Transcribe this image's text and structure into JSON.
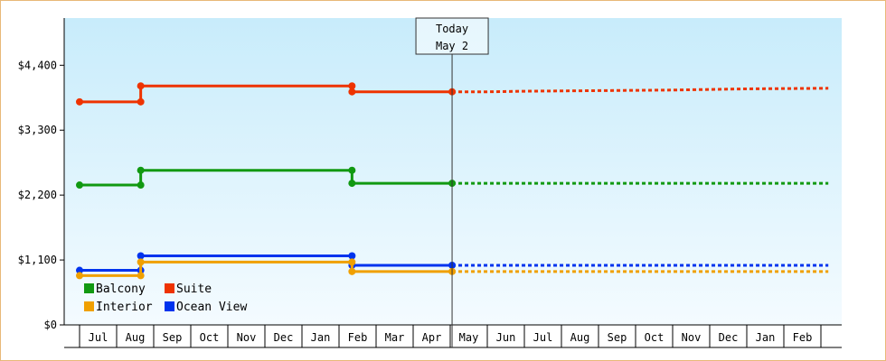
{
  "chart_data": {
    "type": "line",
    "title": "",
    "xlabel": "",
    "ylabel": "",
    "ylim": [
      0,
      5200
    ],
    "y_ticks": [
      {
        "value": 0,
        "label": "$0"
      },
      {
        "value": 1100,
        "label": "$1,100"
      },
      {
        "value": 2200,
        "label": "$2,200"
      },
      {
        "value": 3300,
        "label": "$3,300"
      },
      {
        "value": 4400,
        "label": "$4,400"
      }
    ],
    "months": [
      "Jul",
      "Aug",
      "Sep",
      "Oct",
      "Nov",
      "Dec",
      "Jan",
      "Feb",
      "Mar",
      "Apr",
      "May",
      "Jun",
      "Jul",
      "Aug",
      "Sep",
      "Oct",
      "Nov",
      "Dec",
      "Jan",
      "Feb"
    ],
    "today": {
      "line1": "Today",
      "line2": "May 2",
      "month_index": 10.05
    },
    "grid": false,
    "legend_position": "bottom-left",
    "series": [
      {
        "name": "Suite",
        "color": "#ee3300",
        "points": [
          [
            0.0,
            3780
          ],
          [
            1.65,
            3780
          ],
          [
            1.65,
            4050
          ],
          [
            7.35,
            4050
          ],
          [
            7.35,
            3950
          ],
          [
            10.05,
            3950
          ]
        ],
        "forecast": [
          [
            10.05,
            3950
          ],
          [
            11.0,
            3950
          ],
          [
            12.0,
            3960
          ],
          [
            14.0,
            3970
          ],
          [
            16.0,
            3980
          ],
          [
            18.0,
            4000
          ],
          [
            20.2,
            4010
          ]
        ]
      },
      {
        "name": "Balcony",
        "color": "#119911",
        "points": [
          [
            0.0,
            2370
          ],
          [
            1.65,
            2370
          ],
          [
            1.65,
            2620
          ],
          [
            7.35,
            2620
          ],
          [
            7.35,
            2400
          ],
          [
            10.05,
            2400
          ]
        ],
        "forecast": [
          [
            10.05,
            2400
          ],
          [
            20.2,
            2400
          ]
        ]
      },
      {
        "name": "Ocean View",
        "color": "#0033ee",
        "points": [
          [
            0.0,
            925
          ],
          [
            1.65,
            925
          ],
          [
            1.65,
            1170
          ],
          [
            7.35,
            1170
          ],
          [
            7.35,
            1010
          ],
          [
            10.05,
            1010
          ]
        ],
        "forecast": [
          [
            10.05,
            1010
          ],
          [
            20.2,
            1010
          ]
        ]
      },
      {
        "name": "Interior",
        "color": "#f0a000",
        "points": [
          [
            0.0,
            835
          ],
          [
            1.65,
            835
          ],
          [
            1.65,
            1065
          ],
          [
            7.35,
            1065
          ],
          [
            7.35,
            905
          ],
          [
            10.05,
            905
          ]
        ],
        "forecast": [
          [
            10.05,
            905
          ],
          [
            20.2,
            905
          ]
        ]
      }
    ],
    "legend": [
      {
        "name": "Balcony",
        "color": "#119911"
      },
      {
        "name": "Suite",
        "color": "#ee3300"
      },
      {
        "name": "Interior",
        "color": "#f0a000"
      },
      {
        "name": "Ocean View",
        "color": "#0033ee"
      }
    ]
  }
}
